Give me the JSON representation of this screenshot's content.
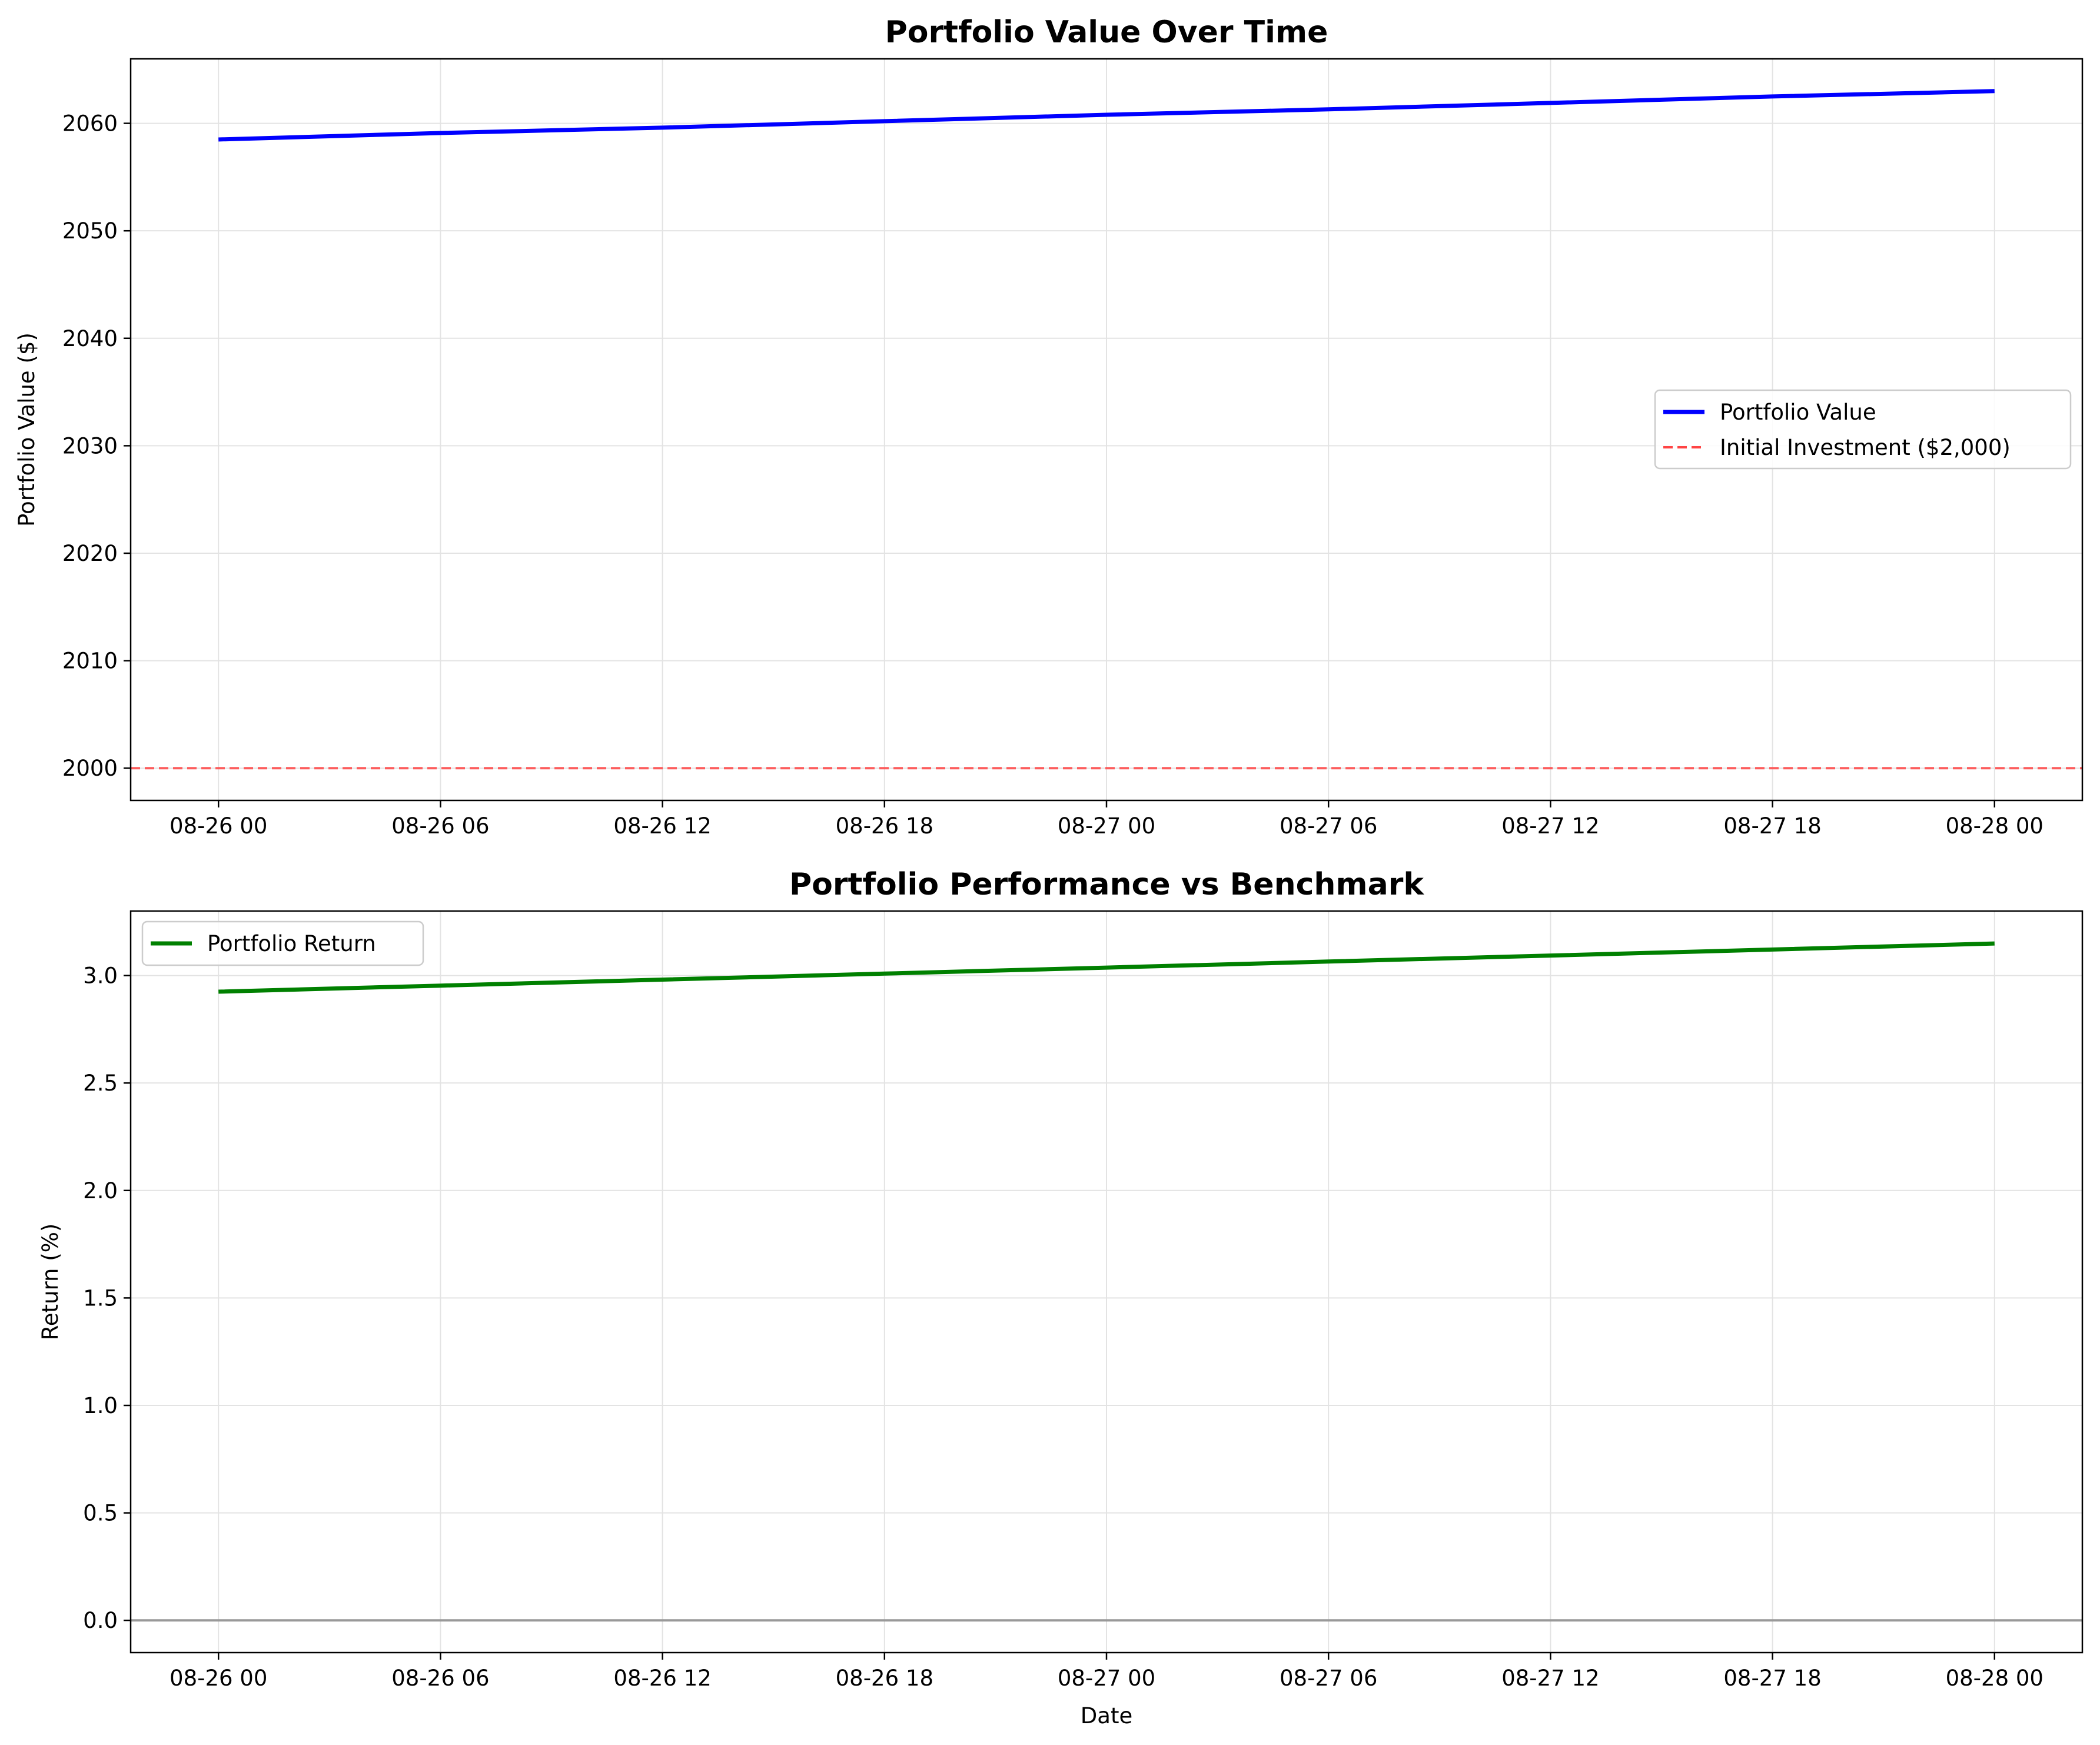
{
  "chart_data": [
    {
      "type": "line",
      "title": "Portfolio Value Over Time",
      "xlabel": "",
      "ylabel": "Portfolio Value ($)",
      "x": [
        "08-26 00",
        "08-26 06",
        "08-26 12",
        "08-26 18",
        "08-27 00",
        "08-27 06",
        "08-27 12",
        "08-27 18",
        "08-28 00"
      ],
      "xticks": [
        "08-26 00",
        "08-26 06",
        "08-26 12",
        "08-26 18",
        "08-27 00",
        "08-27 06",
        "08-27 12",
        "08-27 18",
        "08-28 00"
      ],
      "ylim": [
        1997,
        2066
      ],
      "yticks": [
        2000,
        2010,
        2020,
        2030,
        2040,
        2050,
        2060
      ],
      "grid": true,
      "legend_position": "center-right",
      "series": [
        {
          "name": "Portfolio Value",
          "color": "#0000ff",
          "style": "solid",
          "values": [
            2058.5,
            2059.1,
            2059.6,
            2060.2,
            2060.8,
            2061.3,
            2061.9,
            2062.5,
            2063.0
          ]
        },
        {
          "name": "Initial Investment ($2,000)",
          "color": "#ff4444",
          "style": "dashed",
          "hline": 2000
        }
      ]
    },
    {
      "type": "line",
      "title": "Portfolio Performance vs Benchmark",
      "xlabel": "Date",
      "ylabel": "Return (%)",
      "x": [
        "08-26 00",
        "08-26 06",
        "08-26 12",
        "08-26 18",
        "08-27 00",
        "08-27 06",
        "08-27 12",
        "08-27 18",
        "08-28 00"
      ],
      "xticks": [
        "08-26 00",
        "08-26 06",
        "08-26 12",
        "08-26 18",
        "08-27 00",
        "08-27 06",
        "08-27 12",
        "08-27 18",
        "08-28 00"
      ],
      "ylim": [
        -0.15,
        3.3
      ],
      "yticks": [
        "0.0",
        "0.5",
        "1.0",
        "1.5",
        "2.0",
        "2.5",
        "3.0"
      ],
      "grid": true,
      "legend_position": "upper-left",
      "series": [
        {
          "name": "Portfolio Return",
          "color": "#008000",
          "style": "solid",
          "values": [
            2.925,
            2.953,
            2.981,
            3.009,
            3.037,
            3.065,
            3.093,
            3.121,
            3.149
          ]
        },
        {
          "name": "",
          "color": "#999999",
          "style": "solid",
          "hline": 0,
          "in_legend": false
        }
      ]
    }
  ]
}
